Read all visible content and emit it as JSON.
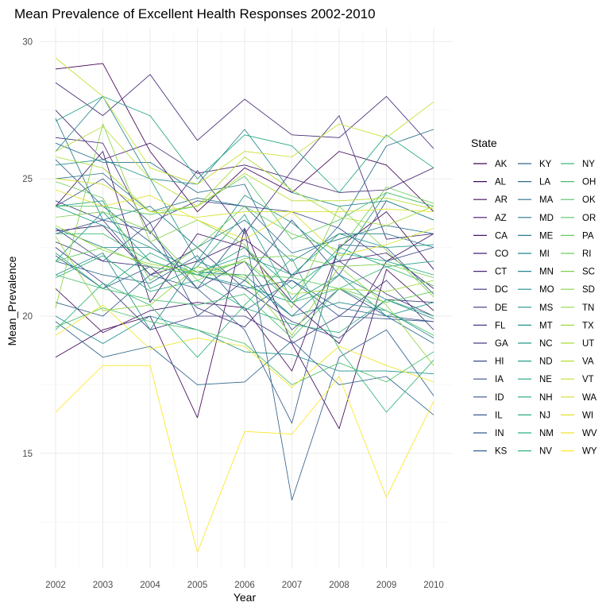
{
  "chart_data": {
    "type": "line",
    "title": "Mean Prevalence of Excellent Health Responses 2002-2010",
    "xlabel": "Year",
    "ylabel": "Mean_Prevalence",
    "x": [
      2002,
      2003,
      2004,
      2005,
      2006,
      2007,
      2008,
      2009,
      2010
    ],
    "ylim": [
      10.8,
      30.5
    ],
    "y_ticks": [
      15,
      20,
      25,
      30
    ],
    "grid": true,
    "legend": {
      "title": "State",
      "position": "right",
      "columns": 3
    },
    "colormap": "viridis",
    "series": [
      {
        "name": "AK",
        "values": [
          29.0,
          29.2,
          26.0,
          23.8,
          25.4,
          24.5,
          26.0,
          25.5,
          23.8
        ]
      },
      {
        "name": "AL",
        "values": [
          18.5,
          19.5,
          20.0,
          16.3,
          23.2,
          19.0,
          15.9,
          21.7,
          20.2
        ]
      },
      {
        "name": "AR",
        "values": [
          21.0,
          19.4,
          20.2,
          20.5,
          20.3,
          18.0,
          22.5,
          23.8,
          21.7
        ]
      },
      {
        "name": "AZ",
        "values": [
          24.0,
          26.0,
          20.5,
          23.0,
          22.5,
          20.5,
          19.0,
          22.0,
          23.0
        ]
      },
      {
        "name": "CA",
        "values": [
          23.1,
          23.3,
          21.5,
          22.0,
          22.8,
          21.5,
          22.0,
          22.3,
          21.0
        ]
      },
      {
        "name": "CO",
        "values": [
          27.5,
          25.7,
          26.3,
          25.2,
          25.5,
          25.0,
          24.5,
          24.6,
          25.4
        ]
      },
      {
        "name": "CT",
        "values": [
          28.5,
          27.3,
          28.8,
          26.4,
          27.9,
          26.6,
          26.5,
          28.0,
          26.1
        ]
      },
      {
        "name": "DC",
        "values": [
          26.5,
          26.3,
          23.0,
          25.3,
          23.0,
          25.3,
          27.3,
          22.8,
          23.0
        ]
      },
      {
        "name": "DE",
        "values": [
          22.7,
          22.0,
          21.8,
          20.3,
          19.6,
          21.5,
          22.0,
          20.8,
          20.0
        ]
      },
      {
        "name": "FL",
        "values": [
          22.5,
          21.2,
          19.5,
          20.0,
          20.0,
          19.0,
          20.0,
          21.3,
          19.5
        ]
      },
      {
        "name": "GA",
        "values": [
          24.2,
          23.5,
          21.5,
          22.5,
          21.0,
          19.8,
          19.2,
          20.6,
          20.5
        ]
      },
      {
        "name": "HI",
        "values": [
          23.2,
          22.0,
          23.4,
          24.2,
          24.0,
          23.8,
          23.2,
          22.0,
          22.5
        ]
      },
      {
        "name": "IA",
        "values": [
          23.0,
          23.5,
          23.1,
          21.0,
          22.0,
          19.5,
          21.0,
          20.0,
          19.8
        ]
      },
      {
        "name": "ID",
        "values": [
          24.0,
          25.0,
          23.4,
          20.0,
          21.3,
          23.5,
          21.5,
          24.2,
          23.5
        ]
      },
      {
        "name": "IL",
        "values": [
          22.2,
          21.0,
          21.8,
          21.5,
          21.0,
          21.3,
          20.0,
          19.9,
          19.8
        ]
      },
      {
        "name": "IN",
        "values": [
          20.5,
          20.0,
          21.5,
          21.0,
          19.5,
          16.1,
          22.6,
          22.5,
          20.8
        ]
      },
      {
        "name": "KS",
        "values": [
          25.7,
          24.0,
          22.7,
          21.0,
          23.2,
          13.3,
          18.5,
          19.5,
          17.1
        ]
      },
      {
        "name": "KY",
        "values": [
          19.8,
          18.5,
          18.9,
          17.5,
          17.6,
          19.1,
          17.5,
          17.8,
          16.4
        ]
      },
      {
        "name": "LA",
        "values": [
          22.0,
          21.5,
          21.2,
          22.2,
          20.2,
          21.3,
          20.3,
          20.0,
          19.0
        ]
      },
      {
        "name": "MA",
        "values": [
          26.3,
          25.6,
          25.6,
          24.5,
          24.8,
          21.4,
          23.3,
          26.2,
          26.8
        ]
      },
      {
        "name": "MD",
        "values": [
          25.0,
          25.2,
          23.8,
          24.3,
          24.0,
          22.3,
          22.8,
          23.3,
          23.0
        ]
      },
      {
        "name": "ME",
        "values": [
          27.2,
          23.5,
          24.0,
          22.5,
          23.5,
          22.0,
          23.0,
          23.0,
          22.5
        ]
      },
      {
        "name": "MI",
        "values": [
          23.2,
          22.5,
          22.5,
          21.6,
          21.5,
          20.0,
          21.5,
          20.6,
          19.9
        ]
      },
      {
        "name": "MN",
        "values": [
          26.0,
          28.0,
          25.0,
          24.8,
          26.8,
          24.5,
          24.0,
          24.2,
          23.5
        ]
      },
      {
        "name": "MO",
        "values": [
          21.5,
          22.3,
          19.5,
          22.0,
          21.3,
          20.0,
          20.5,
          20.2,
          19.2
        ]
      },
      {
        "name": "MS",
        "values": [
          20.0,
          19.0,
          20.0,
          19.5,
          18.7,
          18.6,
          18.0,
          18.0,
          17.9
        ]
      },
      {
        "name": "MT",
        "values": [
          25.5,
          25.7,
          25.0,
          22.0,
          24.4,
          23.4,
          22.0,
          24.5,
          24.0
        ]
      },
      {
        "name": "NC",
        "values": [
          22.0,
          23.8,
          22.0,
          21.5,
          21.1,
          20.5,
          21.5,
          20.0,
          20.5
        ]
      },
      {
        "name": "ND",
        "values": [
          24.0,
          23.3,
          22.5,
          21.6,
          22.2,
          21.5,
          23.0,
          22.5,
          22.6
        ]
      },
      {
        "name": "NE",
        "values": [
          24.0,
          24.2,
          21.0,
          21.8,
          23.7,
          20.6,
          22.5,
          21.8,
          22.0
        ]
      },
      {
        "name": "NH",
        "values": [
          27.1,
          28.0,
          27.3,
          25.0,
          26.6,
          26.2,
          24.5,
          26.6,
          25.4
        ]
      },
      {
        "name": "NJ",
        "values": [
          22.3,
          21.0,
          22.3,
          21.5,
          22.5,
          21.0,
          22.3,
          22.0,
          21.5
        ]
      },
      {
        "name": "NM",
        "values": [
          21.4,
          22.2,
          20.9,
          21.3,
          20.3,
          19.7,
          19.4,
          20.6,
          20.0
        ]
      },
      {
        "name": "NV",
        "values": [
          19.5,
          21.2,
          20.4,
          18.5,
          20.4,
          22.1,
          18.8,
          16.5,
          18.4
        ]
      },
      {
        "name": "NY",
        "values": [
          23.0,
          23.0,
          22.0,
          21.5,
          22.0,
          20.5,
          21.0,
          21.8,
          21.1
        ]
      },
      {
        "name": "OH",
        "values": [
          21.5,
          21.0,
          20.6,
          20.4,
          20.8,
          19.2,
          21.0,
          20.2,
          19.3
        ]
      },
      {
        "name": "OK",
        "values": [
          19.6,
          20.3,
          19.8,
          19.5,
          19.0,
          17.5,
          18.3,
          17.6,
          18.7
        ]
      },
      {
        "name": "OR",
        "values": [
          24.0,
          24.0,
          23.7,
          24.0,
          25.1,
          22.8,
          23.5,
          24.5,
          24.0
        ]
      },
      {
        "name": "PA",
        "values": [
          22.0,
          22.5,
          21.8,
          21.5,
          21.5,
          21.4,
          21.0,
          20.5,
          20.9
        ]
      },
      {
        "name": "RI",
        "values": [
          24.9,
          24.3,
          21.3,
          22.5,
          24.0,
          23.0,
          22.4,
          24.7,
          24.1
        ]
      },
      {
        "name": "SC",
        "values": [
          23.6,
          23.8,
          23.1,
          21.3,
          22.1,
          22.2,
          21.8,
          21.9,
          21.4
        ]
      },
      {
        "name": "SD",
        "values": [
          20.3,
          27.0,
          22.7,
          23.5,
          22.6,
          20.3,
          24.0,
          22.4,
          20.7
        ]
      },
      {
        "name": "TN",
        "values": [
          22.9,
          20.2,
          20.4,
          21.8,
          21.4,
          19.3,
          21.8,
          20.4,
          18.2
        ]
      },
      {
        "name": "TX",
        "values": [
          23.3,
          22.4,
          21.9,
          21.6,
          22.0,
          20.8,
          21.0,
          20.9,
          21.3
        ]
      },
      {
        "name": "UT",
        "values": [
          25.8,
          25.4,
          23.8,
          24.0,
          25.8,
          24.6,
          23.6,
          23.3,
          24.0
        ]
      },
      {
        "name": "VA",
        "values": [
          26.0,
          26.9,
          25.0,
          24.0,
          25.2,
          24.2,
          24.2,
          24.3,
          23.9
        ]
      },
      {
        "name": "VT",
        "values": [
          29.4,
          28.0,
          25.4,
          24.8,
          26.0,
          25.8,
          27.0,
          26.5,
          27.8
        ]
      },
      {
        "name": "WA",
        "values": [
          25.0,
          24.8,
          23.8,
          23.6,
          23.8,
          23.8,
          22.2,
          22.6,
          23.2
        ]
      },
      {
        "name": "WI",
        "values": [
          24.6,
          24.0,
          24.4,
          23.5,
          22.8,
          23.8,
          23.8,
          23.9,
          23.8
        ]
      },
      {
        "name": "WV",
        "values": [
          19.3,
          20.4,
          18.8,
          19.2,
          18.9,
          17.4,
          18.9,
          18.2,
          17.6
        ]
      },
      {
        "name": "WY",
        "values": [
          16.5,
          18.2,
          18.2,
          11.4,
          15.8,
          15.7,
          17.8,
          13.4,
          16.9
        ]
      }
    ]
  }
}
